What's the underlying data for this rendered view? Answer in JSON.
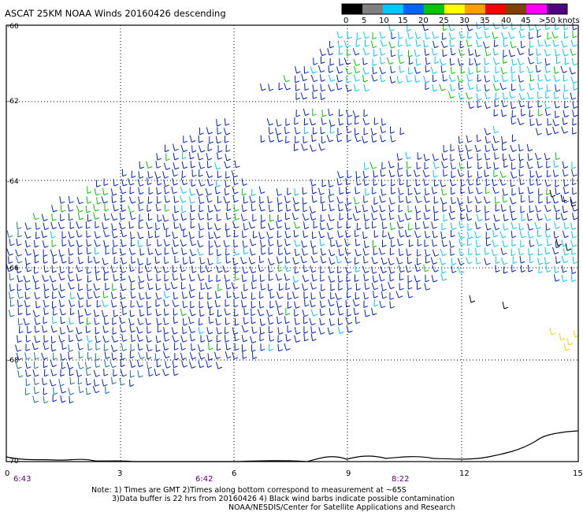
{
  "title": "ASCAT 25KM NOAA Winds 20160426 descending",
  "legend": {
    "labels": [
      "0",
      "5",
      "10",
      "15",
      "20",
      "25",
      "30",
      "35",
      "40",
      "45",
      ">50 knots"
    ],
    "colors": [
      "#000000",
      "#808080",
      "#00c8ff",
      "#0064ff",
      "#00c800",
      "#ffff00",
      "#ffa000",
      "#ff0000",
      "#804000",
      "#ff00ff",
      "#500080"
    ]
  },
  "lat_labels": [
    "-60",
    "-62",
    "-64",
    "-66",
    "-68",
    "-70"
  ],
  "lon_labels": [
    "0",
    "3",
    "6",
    "9",
    "12",
    "15"
  ],
  "time_labels": [
    "6:43",
    "6:42",
    "8:22"
  ],
  "notes": [
    "Note: 1) Times are GMT 2)Times along bottom correspond to measurement at ~65S",
    "3)Data buffer is 22 hrs from 20160426 4) Black wind barbs indicate possible contamination",
    "NOAA/NESDIS/Center for Satellite Applications and Research"
  ],
  "colors": {
    "blue": "#0020c8",
    "cyan": "#00c8ff",
    "green": "#00c800",
    "yellow": "#ffd000",
    "frame": "#000000",
    "time_label": "#6a0080"
  }
}
